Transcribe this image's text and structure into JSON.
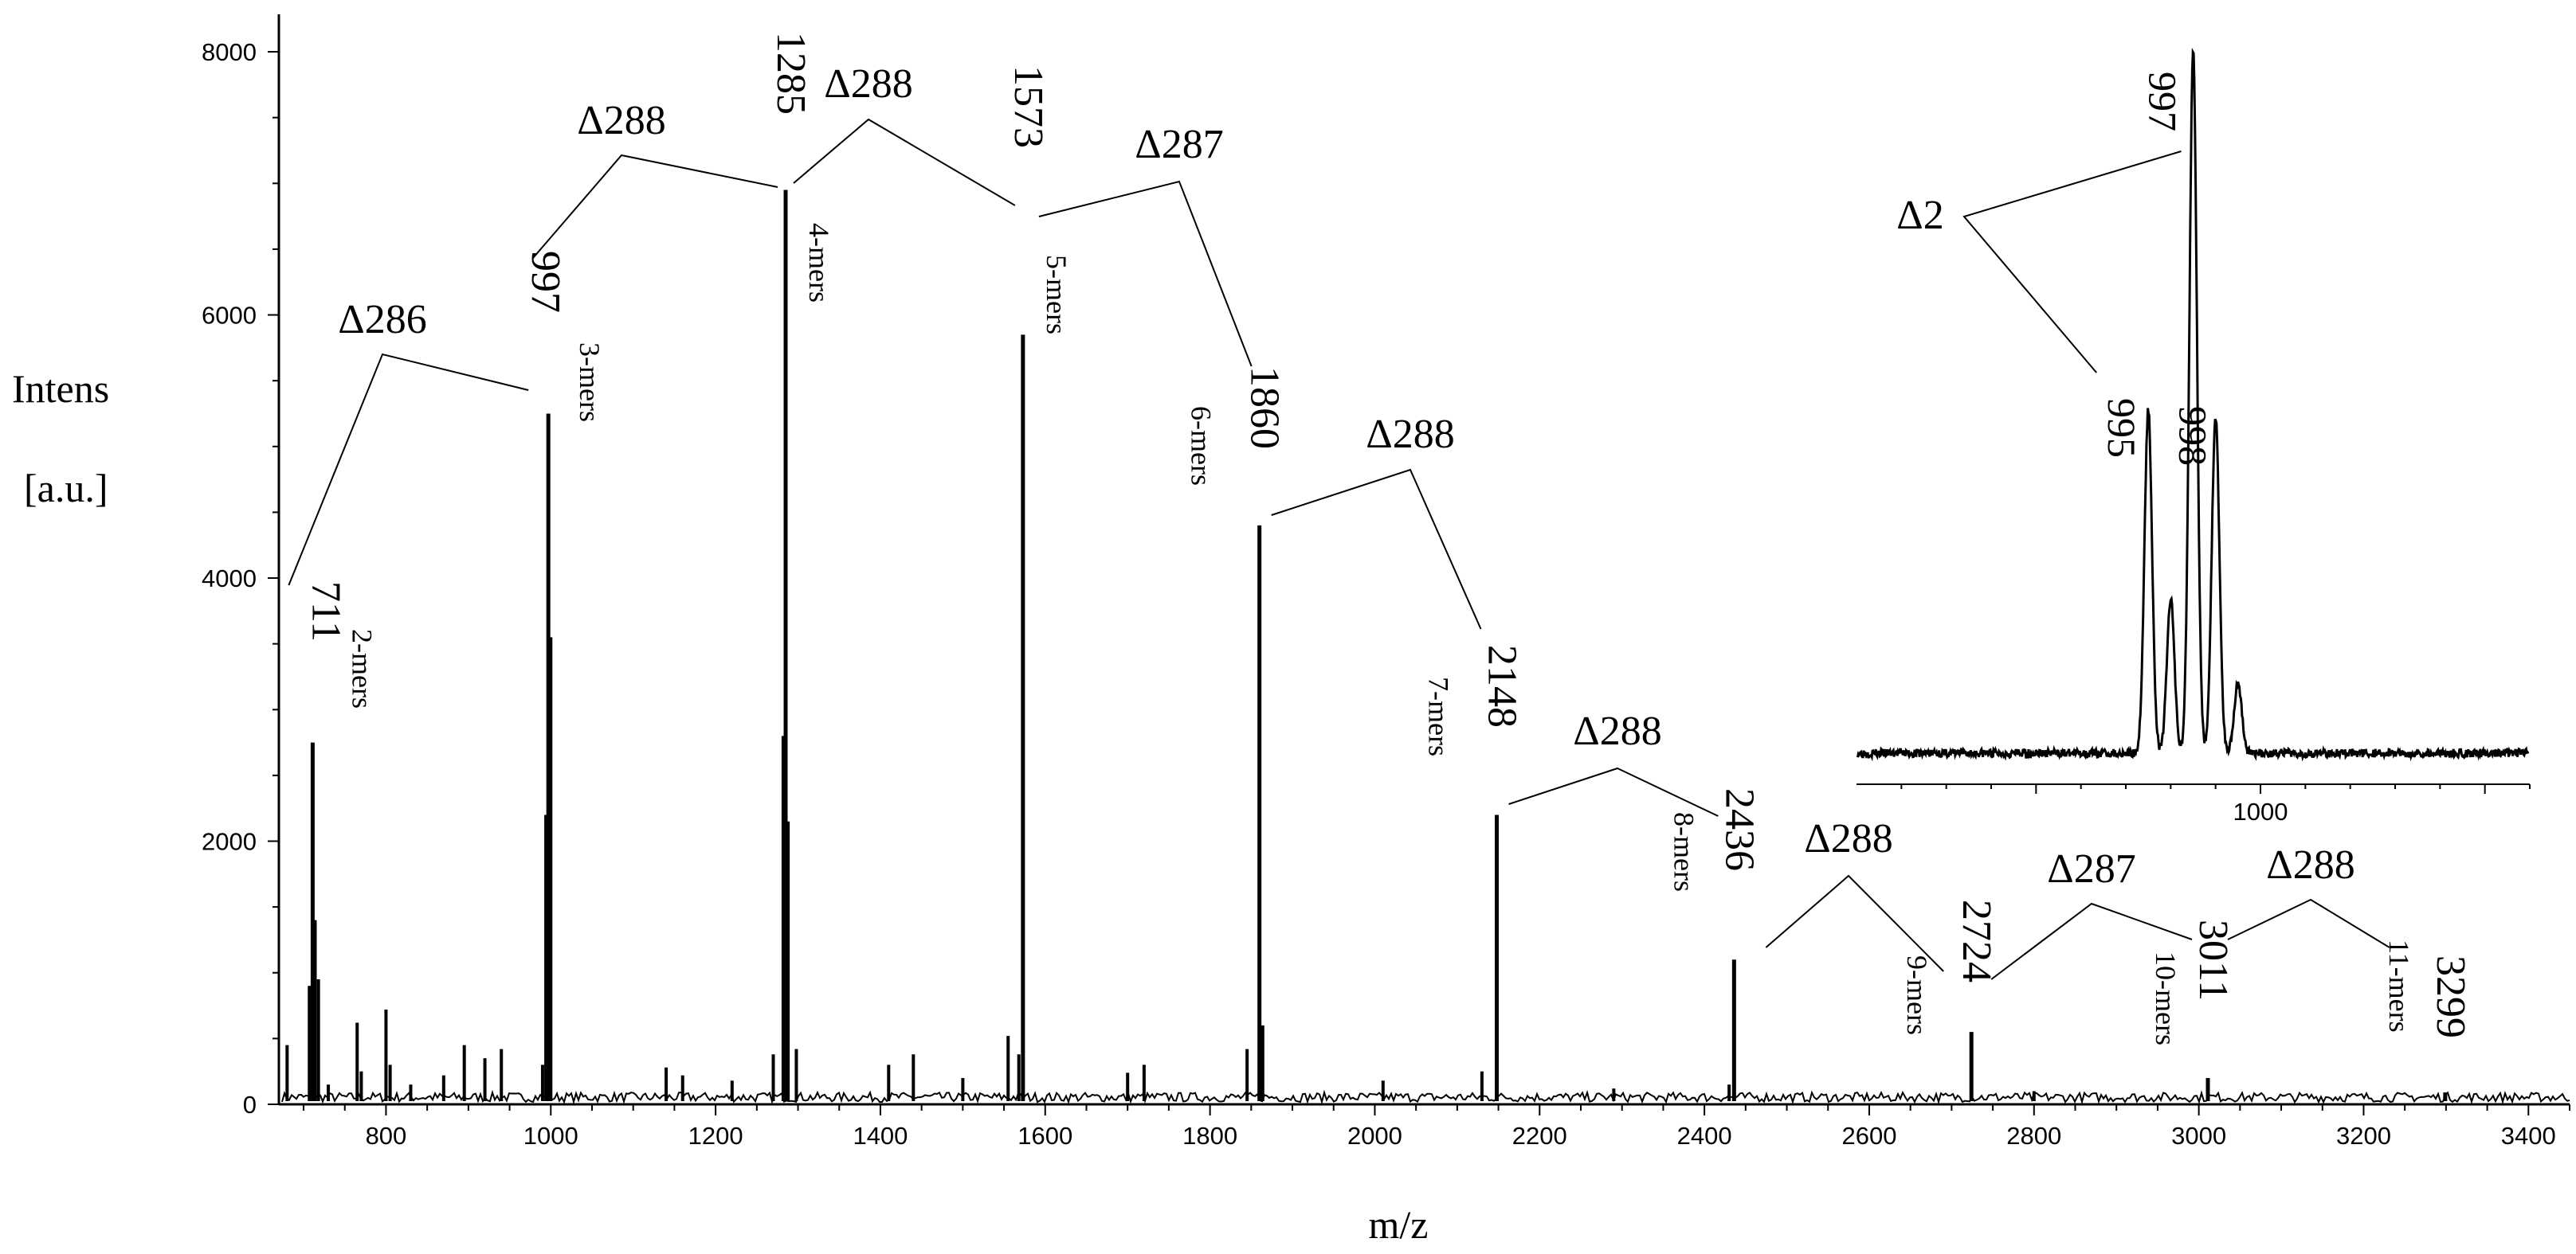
{
  "chart_data": {
    "type": "line",
    "title": "",
    "xlabel": "m/z",
    "ylabel": [
      "Intens",
      "[a.u.]"
    ],
    "xlim": [
      670,
      3450
    ],
    "ylim": [
      0,
      8200
    ],
    "xticks": [
      "800",
      "1000",
      "1200",
      "1400",
      "1600",
      "1800",
      "2000",
      "2200",
      "2400",
      "2600",
      "2800",
      "3000",
      "3200",
      "3400"
    ],
    "yticks": [
      "0",
      "2000",
      "4000",
      "6000",
      "8000"
    ],
    "grid": false,
    "legend": "none",
    "series": [
      {
        "peaks": [
          {
            "x": 711,
            "y": 2750,
            "label": "711",
            "mers": "2-mers"
          },
          {
            "x": 997,
            "y": 5250,
            "label": "997",
            "mers": "3-mers"
          },
          {
            "x": 1285,
            "y": 6950,
            "label": "1285",
            "mers": "4-mers"
          },
          {
            "x": 1573,
            "y": 5850,
            "label": "1573",
            "mers": "5-mers"
          },
          {
            "x": 1860,
            "y": 4400,
            "label": "1860",
            "mers": "6-mers"
          },
          {
            "x": 2148,
            "y": 2200,
            "label": "2148",
            "mers": "7-mers"
          },
          {
            "x": 2436,
            "y": 1100,
            "label": "2436",
            "mers": "8-mers"
          },
          {
            "x": 2724,
            "y": 550,
            "label": "2724",
            "mers": "9-mers"
          },
          {
            "x": 3011,
            "y": 200,
            "label": "3011",
            "mers": "10-mers"
          },
          {
            "x": 3299,
            "y": 90,
            "label": "3299",
            "mers": "11-mers"
          }
        ],
        "minor_peaks": [
          {
            "x": 680,
            "y": 450
          },
          {
            "x": 707,
            "y": 900
          },
          {
            "x": 714,
            "y": 1400
          },
          {
            "x": 718,
            "y": 950
          },
          {
            "x": 730,
            "y": 150
          },
          {
            "x": 765,
            "y": 620
          },
          {
            "x": 770,
            "y": 250
          },
          {
            "x": 800,
            "y": 720
          },
          {
            "x": 805,
            "y": 300
          },
          {
            "x": 830,
            "y": 150
          },
          {
            "x": 870,
            "y": 220
          },
          {
            "x": 895,
            "y": 450
          },
          {
            "x": 920,
            "y": 350
          },
          {
            "x": 940,
            "y": 420
          },
          {
            "x": 990,
            "y": 300
          },
          {
            "x": 994,
            "y": 2200
          },
          {
            "x": 1000,
            "y": 3550
          },
          {
            "x": 1140,
            "y": 280
          },
          {
            "x": 1160,
            "y": 220
          },
          {
            "x": 1220,
            "y": 180
          },
          {
            "x": 1270,
            "y": 380
          },
          {
            "x": 1282,
            "y": 2800
          },
          {
            "x": 1288,
            "y": 2150
          },
          {
            "x": 1298,
            "y": 420
          },
          {
            "x": 1410,
            "y": 300
          },
          {
            "x": 1440,
            "y": 380
          },
          {
            "x": 1500,
            "y": 200
          },
          {
            "x": 1555,
            "y": 520
          },
          {
            "x": 1568,
            "y": 380
          },
          {
            "x": 1700,
            "y": 240
          },
          {
            "x": 1720,
            "y": 300
          },
          {
            "x": 1845,
            "y": 420
          },
          {
            "x": 1864,
            "y": 600
          },
          {
            "x": 2010,
            "y": 180
          },
          {
            "x": 2130,
            "y": 250
          },
          {
            "x": 2290,
            "y": 120
          },
          {
            "x": 2430,
            "y": 150
          },
          {
            "x": 2800,
            "y": 100
          }
        ],
        "noise_level": 60
      }
    ],
    "deltas": [
      {
        "label": "Δ286",
        "from": 711,
        "to": 997
      },
      {
        "label": "Δ288",
        "from": 997,
        "to": 1285
      },
      {
        "label": "Δ288",
        "from": 1285,
        "to": 1573
      },
      {
        "label": "Δ287",
        "from": 1573,
        "to": 1860
      },
      {
        "label": "Δ288",
        "from": 1860,
        "to": 2148
      },
      {
        "label": "Δ288",
        "from": 2148,
        "to": 2436
      },
      {
        "label": "Δ288",
        "from": 2436,
        "to": 2724
      },
      {
        "label": "Δ287",
        "from": 2724,
        "to": 3011
      },
      {
        "label": "Δ288",
        "from": 3011,
        "to": 3299
      }
    ],
    "inset": {
      "xlim": [
        982,
        1012
      ],
      "xticks": [
        "1000"
      ],
      "peaks": [
        {
          "x": 995,
          "y": 0.49,
          "label": "995"
        },
        {
          "x": 996,
          "y": 0.22
        },
        {
          "x": 997,
          "y": 1.0,
          "label": "997"
        },
        {
          "x": 998,
          "y": 0.48,
          "label": "998"
        },
        {
          "x": 999,
          "y": 0.1
        }
      ],
      "delta": {
        "label": "Δ2",
        "from": 995,
        "to": 997
      }
    }
  }
}
